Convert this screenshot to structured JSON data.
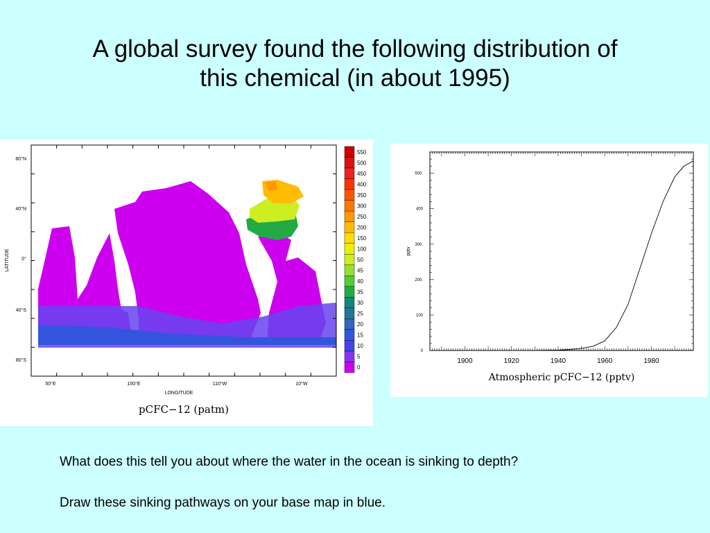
{
  "slide": {
    "title_line1": "A global survey found the following distribution of",
    "title_line2": "this chemical (in about 1995)",
    "question1": "What does this tell you about where the water in the ocean is sinking to depth?",
    "question2": "Draw these sinking pathways on your base map in blue."
  },
  "chart_data": [
    {
      "type": "heatmap",
      "title": "pCFC−12 (patm)",
      "xlabel": "LONGITUDE",
      "ylabel": "LATITUDE",
      "x_ticks": [
        "50°E",
        "150°E",
        "110°W",
        "10°W"
      ],
      "y_ticks": [
        "80°N",
        "40°N",
        "0°",
        "40°S",
        "80°S"
      ],
      "colorbar": {
        "levels": [
          "550",
          "500",
          "450",
          "400",
          "350",
          "300",
          "250",
          "200",
          "150",
          "100",
          "50",
          "45",
          "40",
          "35",
          "30",
          "25",
          "20",
          "15",
          "10",
          "5",
          "0"
        ],
        "colors": [
          "#cc0000",
          "#dd1111",
          "#ee2222",
          "#ff3300",
          "#ff5500",
          "#ff7700",
          "#ff9900",
          "#ffbb00",
          "#ffdd00",
          "#eeee00",
          "#ccee22",
          "#99dd33",
          "#55cc33",
          "#22aa44",
          "#118877",
          "#227799",
          "#3366bb",
          "#3355dd",
          "#4444ee",
          "#8833ee",
          "#cc00ee"
        ]
      }
    },
    {
      "type": "line",
      "xlabel": "Atmospheric pCFC−12 (pptv)",
      "ylabel": "pptv",
      "x_ticks": [
        "1900",
        "1920",
        "1940",
        "1960",
        "1980"
      ],
      "y_ticks": [
        "0",
        "100",
        "200.",
        "300.",
        "400",
        "500."
      ],
      "xlim": [
        1885,
        1998
      ],
      "ylim": [
        0,
        560
      ],
      "series": [
        {
          "x": [
            1885,
            1930,
            1940,
            1945,
            1950,
            1955,
            1960,
            1965,
            1970,
            1975,
            1980,
            1985,
            1990,
            1994,
            1998
          ],
          "y": [
            0,
            0,
            1,
            3,
            6,
            12,
            27,
            65,
            130,
            230,
            330,
            420,
            490,
            520,
            535
          ]
        }
      ]
    }
  ]
}
